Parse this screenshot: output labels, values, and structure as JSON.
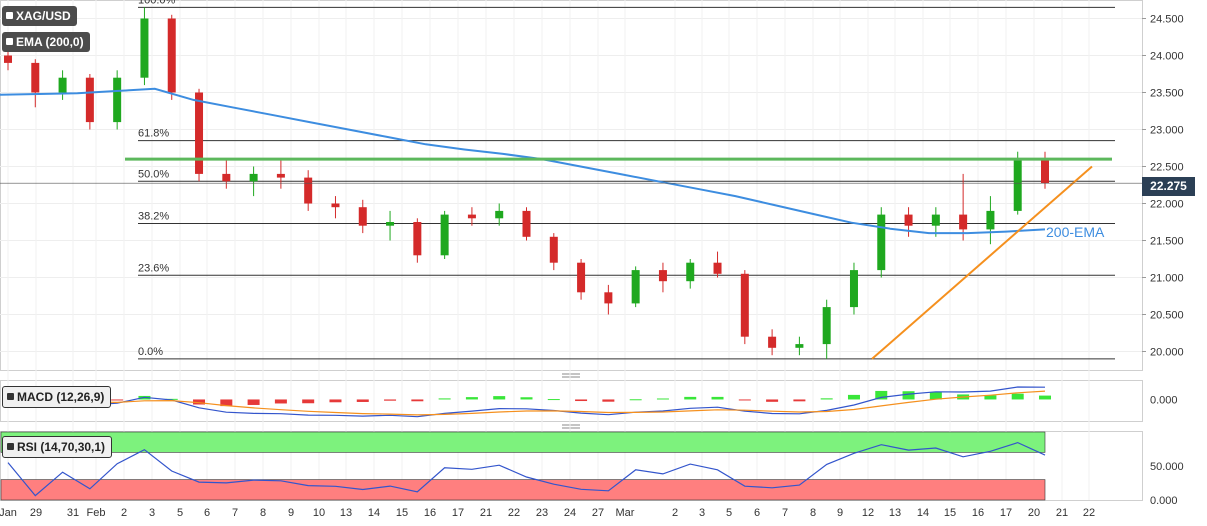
{
  "chart_data": {
    "type": "candlestick",
    "symbol": "XAG/USD",
    "indicator_label": "EMA (200,0)",
    "last_price": "22.275",
    "ylim": [
      19.75,
      24.75
    ],
    "y_ticks": [
      "24.500",
      "24.000",
      "23.500",
      "23.000",
      "22.500",
      "22.000",
      "21.500",
      "21.000",
      "20.500",
      "20.000"
    ],
    "x_ticks": [
      "Jan",
      "29",
      "31",
      "Feb",
      "2",
      "3",
      "5",
      "6",
      "7",
      "8",
      "9",
      "10",
      "13",
      "14",
      "15",
      "16",
      "17",
      "21",
      "22",
      "23",
      "24",
      "27",
      "Mar",
      "2",
      "3",
      "5",
      "6",
      "7",
      "8",
      "9",
      "12",
      "13",
      "14",
      "15",
      "16",
      "17",
      "20",
      "21",
      "22"
    ],
    "fibonacci": [
      {
        "label": "100.0%",
        "value": 24.65
      },
      {
        "label": "61.8%",
        "value": 22.85
      },
      {
        "label": "50.0%",
        "value": 22.3
      },
      {
        "label": "38.2%",
        "value": 21.73
      },
      {
        "label": "23.6%",
        "value": 21.03
      },
      {
        "label": "0.0%",
        "value": 19.9
      }
    ],
    "resistance_level": 22.6,
    "ema_label": "200-EMA",
    "ema_200": [
      23.47,
      23.48,
      23.49,
      23.52,
      23.55,
      23.4,
      23.3,
      23.2,
      23.1,
      23.0,
      22.9,
      22.8,
      22.73,
      22.67,
      22.6,
      22.5,
      22.4,
      22.3,
      22.2,
      22.1,
      21.98,
      21.86,
      21.74,
      21.66,
      21.6,
      21.6,
      21.62,
      21.65
    ],
    "candles_approx": [
      {
        "t": "Jan 27",
        "o": 24.0,
        "h": 24.1,
        "l": 23.8,
        "c": 23.9
      },
      {
        "t": "Jan 29",
        "o": 23.9,
        "h": 23.95,
        "l": 23.3,
        "c": 23.5
      },
      {
        "t": "Jan 30",
        "o": 23.5,
        "h": 23.8,
        "l": 23.4,
        "c": 23.7
      },
      {
        "t": "Jan 31",
        "o": 23.7,
        "h": 23.75,
        "l": 23.0,
        "c": 23.1
      },
      {
        "t": "Feb 1",
        "o": 23.1,
        "h": 23.8,
        "l": 23.0,
        "c": 23.7
      },
      {
        "t": "Feb 2",
        "o": 23.7,
        "h": 24.65,
        "l": 23.6,
        "c": 24.5
      },
      {
        "t": "Feb 3",
        "o": 24.5,
        "h": 24.55,
        "l": 23.4,
        "c": 23.5
      },
      {
        "t": "Feb 5",
        "o": 23.5,
        "h": 23.55,
        "l": 22.3,
        "c": 22.4
      },
      {
        "t": "Feb 6",
        "o": 22.4,
        "h": 22.6,
        "l": 22.2,
        "c": 22.3
      },
      {
        "t": "Feb 7",
        "o": 22.3,
        "h": 22.5,
        "l": 22.1,
        "c": 22.4
      },
      {
        "t": "Feb 8",
        "o": 22.4,
        "h": 22.6,
        "l": 22.2,
        "c": 22.35
      },
      {
        "t": "Feb 9",
        "o": 22.35,
        "h": 22.45,
        "l": 21.9,
        "c": 22.0
      },
      {
        "t": "Feb 10",
        "o": 22.0,
        "h": 22.1,
        "l": 21.8,
        "c": 21.95
      },
      {
        "t": "Feb 13",
        "o": 21.95,
        "h": 22.05,
        "l": 21.6,
        "c": 21.7
      },
      {
        "t": "Feb 14",
        "o": 21.7,
        "h": 21.9,
        "l": 21.5,
        "c": 21.75
      },
      {
        "t": "Feb 15",
        "o": 21.75,
        "h": 21.8,
        "l": 21.2,
        "c": 21.3
      },
      {
        "t": "Feb 16",
        "o": 21.3,
        "h": 21.9,
        "l": 21.25,
        "c": 21.85
      },
      {
        "t": "Feb 17",
        "o": 21.85,
        "h": 21.95,
        "l": 21.7,
        "c": 21.8
      },
      {
        "t": "Feb 21",
        "o": 21.8,
        "h": 22.0,
        "l": 21.7,
        "c": 21.9
      },
      {
        "t": "Feb 22",
        "o": 21.9,
        "h": 21.95,
        "l": 21.5,
        "c": 21.55
      },
      {
        "t": "Feb 23",
        "o": 21.55,
        "h": 21.6,
        "l": 21.1,
        "c": 21.2
      },
      {
        "t": "Feb 24",
        "o": 21.2,
        "h": 21.25,
        "l": 20.7,
        "c": 20.8
      },
      {
        "t": "Feb 27",
        "o": 20.8,
        "h": 20.9,
        "l": 20.5,
        "c": 20.65
      },
      {
        "t": "Mar 1",
        "o": 20.65,
        "h": 21.15,
        "l": 20.6,
        "c": 21.1
      },
      {
        "t": "Mar 2",
        "o": 21.1,
        "h": 21.2,
        "l": 20.8,
        "c": 20.95
      },
      {
        "t": "Mar 3",
        "o": 20.95,
        "h": 21.25,
        "l": 20.85,
        "c": 21.2
      },
      {
        "t": "Mar 5",
        "o": 21.2,
        "h": 21.35,
        "l": 21.0,
        "c": 21.05
      },
      {
        "t": "Mar 6",
        "o": 21.05,
        "h": 21.1,
        "l": 20.1,
        "c": 20.2
      },
      {
        "t": "Mar 7",
        "o": 20.2,
        "h": 20.3,
        "l": 19.95,
        "c": 20.05
      },
      {
        "t": "Mar 8",
        "o": 20.05,
        "h": 20.2,
        "l": 19.95,
        "c": 20.1
      },
      {
        "t": "Mar 9",
        "o": 20.1,
        "h": 20.7,
        "l": 19.9,
        "c": 20.6
      },
      {
        "t": "Mar 10",
        "o": 20.6,
        "h": 21.2,
        "l": 20.5,
        "c": 21.1
      },
      {
        "t": "Mar 12",
        "o": 21.1,
        "h": 21.95,
        "l": 21.0,
        "c": 21.85
      },
      {
        "t": "Mar 13",
        "o": 21.85,
        "h": 21.95,
        "l": 21.55,
        "c": 21.7
      },
      {
        "t": "Mar 14",
        "o": 21.7,
        "h": 21.95,
        "l": 21.55,
        "c": 21.85
      },
      {
        "t": "Mar 15",
        "o": 21.85,
        "h": 22.4,
        "l": 21.5,
        "c": 21.65
      },
      {
        "t": "Mar 16",
        "o": 21.65,
        "h": 22.1,
        "l": 21.45,
        "c": 21.9
      },
      {
        "t": "Mar 17",
        "o": 21.9,
        "h": 22.7,
        "l": 21.85,
        "c": 22.6
      },
      {
        "t": "Mar 18",
        "o": 22.6,
        "h": 22.7,
        "l": 22.2,
        "c": 22.275
      }
    ],
    "macd": {
      "label": "MACD (12,26,9)",
      "y_ticks": [
        "0.000"
      ],
      "ylim": [
        -0.35,
        0.3
      ],
      "zero": 0.0
    },
    "rsi": {
      "label": "RSI (14,70,30,1)",
      "y_ticks": [
        "50.000",
        "0.000"
      ],
      "overbought": 70,
      "oversold": 30,
      "ylim": [
        0,
        100
      ]
    },
    "colors": {
      "up": "#1fa81f",
      "down": "#d42a2a",
      "ema": "#3d8de0",
      "resistance": "#5cb85c",
      "trendline": "#f5901e",
      "price_box": "#2b3f55",
      "macd_line": "#3355cc",
      "signal_line": "#f5901e",
      "rsi_line": "#3355cc",
      "rsi_high_zone": "#7df27d",
      "rsi_low_zone": "#ff7f7f"
    }
  }
}
